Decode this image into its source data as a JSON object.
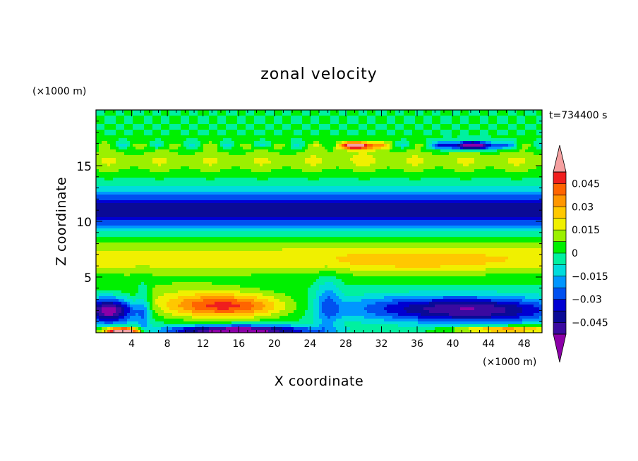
{
  "chart_data": {
    "type": "heatmap",
    "title": "zonal velocity",
    "xlabel": "X coordinate",
    "ylabel": "Z coordinate",
    "x_unit": "(×1000 m)",
    "y_unit": "(×1000 m)",
    "time_label": "t=734400 s",
    "xlim": [
      0,
      50
    ],
    "ylim": [
      0,
      20
    ],
    "x_ticks": [
      4,
      8,
      12,
      16,
      20,
      24,
      28,
      32,
      36,
      40,
      44,
      48
    ],
    "x_tick_labels": [
      "4",
      "8",
      "12",
      "16",
      "20",
      "24",
      "28",
      "32",
      "36",
      "40",
      "44",
      "48"
    ],
    "y_ticks": [
      5,
      10,
      15
    ],
    "y_tick_labels": [
      "5",
      "10",
      "15"
    ],
    "colorbar": {
      "min": -0.0525,
      "max": 0.0525,
      "step": 0.0075,
      "extend": "both",
      "tick_values": [
        0.045,
        0.03,
        0.015,
        0,
        -0.015,
        -0.03,
        -0.045
      ],
      "tick_labels": [
        "0.045",
        "0.03",
        "0.015",
        "0",
        "−0.015",
        "−0.03",
        "−0.045"
      ],
      "colors": [
        "#8c00a8",
        "#3a0aa0",
        "#0a0a96",
        "#0000d2",
        "#0050f0",
        "#0096ff",
        "#00dcdc",
        "#00f0a0",
        "#00f000",
        "#9bf000",
        "#f0f000",
        "#ffc800",
        "#ff9600",
        "#ff6400",
        "#f01e1e",
        "#f5a0a0"
      ]
    },
    "field_features": [
      {
        "desc": "upper jet",
        "x": [
          0,
          50
        ],
        "z": [
          9.6,
          12.4
        ],
        "value": -0.04
      },
      {
        "desc": "positive band",
        "x": [
          0,
          50
        ],
        "z": [
          5.3,
          8.0
        ],
        "value": 0.018
      },
      {
        "desc": "positive core",
        "x": [
          26,
          46
        ],
        "z": [
          5.8,
          7.2
        ],
        "value": 0.03
      },
      {
        "desc": "low-level positive core",
        "x": [
          7,
          24
        ],
        "z": [
          1.0,
          3.5
        ],
        "value": 0.045
      },
      {
        "desc": "low-level negative core west",
        "x": [
          0,
          4
        ],
        "z": [
          1.0,
          3.4
        ],
        "value": -0.05
      },
      {
        "desc": "low-level negative core east",
        "x": [
          30,
          50
        ],
        "z": [
          0.6,
          3.4
        ],
        "value": -0.05
      },
      {
        "desc": "near-surface negative",
        "x": [
          6,
          28
        ],
        "z": [
          0,
          0.8
        ],
        "value": -0.05
      },
      {
        "desc": "near-surface positive",
        "x": [
          0,
          5
        ],
        "z": [
          0,
          0.6
        ],
        "value": 0.05
      },
      {
        "desc": "tropopause positive patch",
        "x": [
          26,
          33
        ],
        "z": [
          16.5,
          17.1
        ],
        "value": 0.05
      },
      {
        "desc": "tropopause negative patch",
        "x": [
          38,
          46
        ],
        "z": [
          16.5,
          17.1
        ],
        "value": -0.05
      }
    ]
  }
}
